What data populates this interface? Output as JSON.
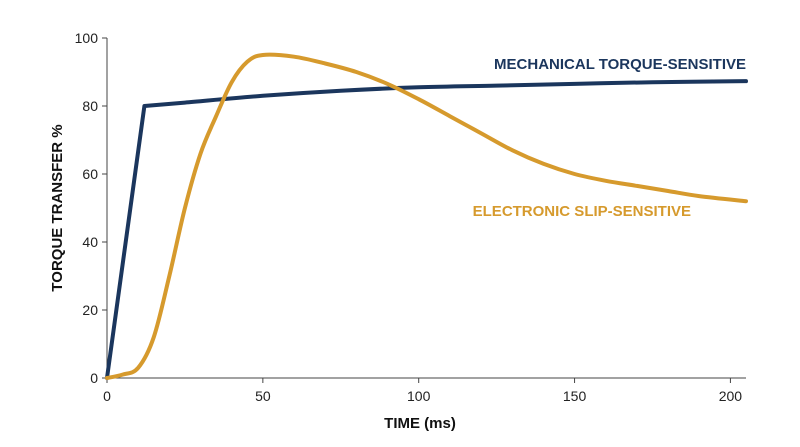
{
  "chart_data": {
    "type": "line",
    "xlabel": "TIME (ms)",
    "ylabel": "TORQUE TRANSFER %",
    "xlim": [
      0,
      205
    ],
    "ylim": [
      0,
      100
    ],
    "x_ticks": [
      0,
      50,
      100,
      150,
      200
    ],
    "y_ticks": [
      0,
      20,
      40,
      60,
      80,
      100
    ],
    "x_tick_labels": [
      "0",
      "50",
      "100",
      "150",
      "200"
    ],
    "y_tick_labels": [
      "0",
      "20",
      "40",
      "60",
      "80",
      "100"
    ],
    "grid": false,
    "series": [
      {
        "name": "MECHANICAL TORQUE-SENSITIVE",
        "color": "#1b365d",
        "x": [
          0,
          12,
          25,
          50,
          75,
          100,
          125,
          150,
          175,
          205
        ],
        "y": [
          0,
          80,
          81,
          83,
          84.5,
          85.5,
          86,
          86.5,
          87,
          87.3
        ]
      },
      {
        "name": "ELECTRONIC SLIP-SENSITIVE",
        "color": "#d69a2d",
        "x": [
          0,
          5,
          10,
          15,
          20,
          25,
          30,
          35,
          40,
          45,
          50,
          60,
          70,
          80,
          90,
          100,
          110,
          120,
          130,
          140,
          150,
          160,
          170,
          180,
          190,
          205
        ],
        "y": [
          0,
          1,
          3,
          12,
          30,
          50,
          66,
          77,
          87,
          93,
          95,
          94.5,
          92.5,
          90,
          86.5,
          82,
          77,
          72,
          67,
          63,
          60,
          58,
          56.5,
          55,
          53.5,
          52
        ]
      }
    ]
  }
}
